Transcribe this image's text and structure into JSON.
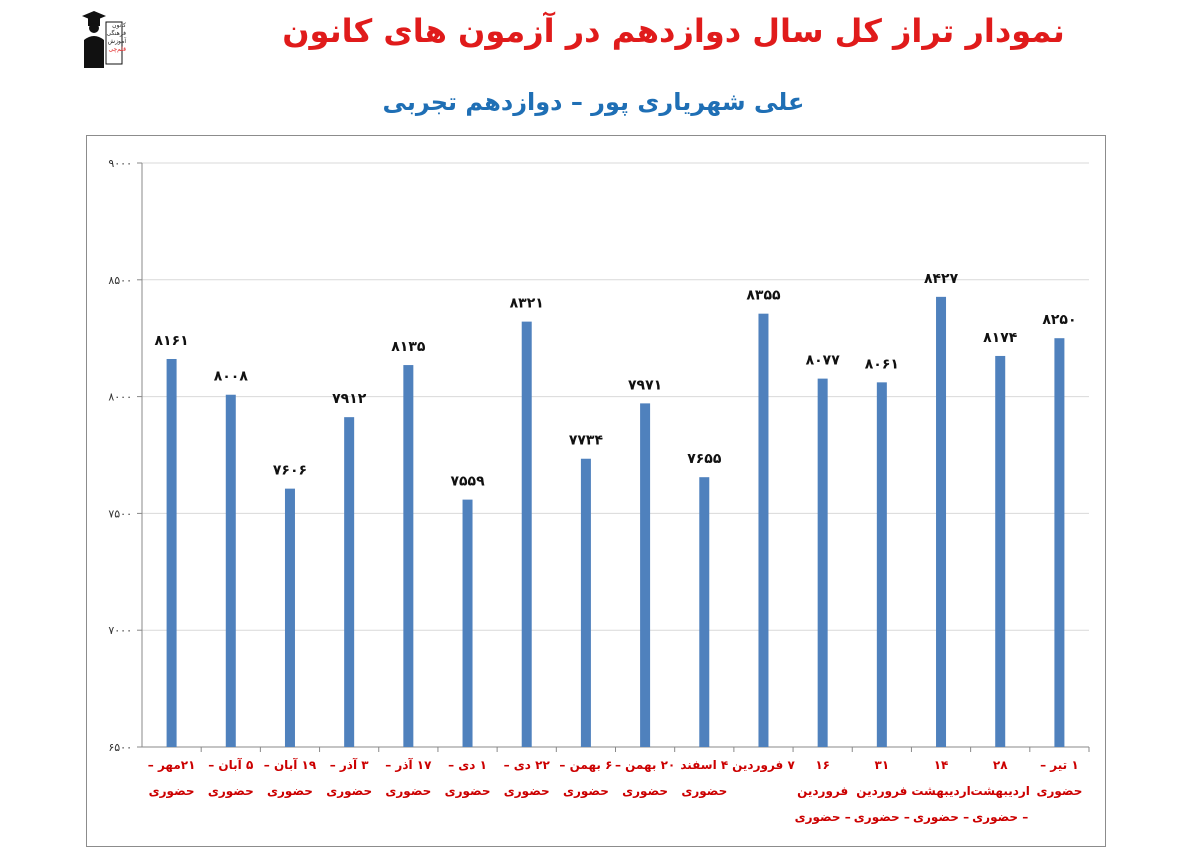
{
  "header": {
    "title": "نمودار تراز کل سال دوازدهم در آزمون های کانون",
    "subtitle": "علی شهریاری پور – دوازدهم تجربی",
    "logo_lines": [
      "کانون",
      "فرهنگی",
      "آموزش",
      "قلم‌چی"
    ]
  },
  "colors": {
    "title": "#e01b1b",
    "subtitle": "#1f6fb5",
    "bar": "#4f81bd",
    "category_label": "#cc0000",
    "grid": "#d9d9d9"
  },
  "chart_data": {
    "type": "bar",
    "title": "",
    "xlabel": "",
    "ylabel": "",
    "ylim": [
      6500,
      9000
    ],
    "yticks": [
      6500,
      7000,
      7500,
      8000,
      8500,
      9000
    ],
    "ytick_labels": [
      "۶۵۰۰",
      "۷۰۰۰",
      "۷۵۰۰",
      "۸۰۰۰",
      "۸۵۰۰",
      "۹۰۰۰"
    ],
    "grid": true,
    "categories": [
      [
        "۲۱مهر –",
        "حضوری"
      ],
      [
        "۵ آبان –",
        "حضوری"
      ],
      [
        "۱۹ آبان –",
        "حضوری"
      ],
      [
        "۳ آذر –",
        "حضوری"
      ],
      [
        "۱۷ آذر –",
        "حضوری"
      ],
      [
        "۱ دی –",
        "حضوری"
      ],
      [
        "۲۲ دی –",
        "حضوری"
      ],
      [
        "۶ بهمن –",
        "حضوری"
      ],
      [
        "۲۰ بهمن –",
        "حضوری"
      ],
      [
        "۴ اسفند",
        "حضوری"
      ],
      [
        "۷ فروردین",
        ""
      ],
      [
        "۱۶",
        "فروردین",
        "– حضوری"
      ],
      [
        "۳۱",
        "فروردین",
        "– حضوری"
      ],
      [
        "۱۴",
        "اردیبهشت",
        "– حضوری"
      ],
      [
        "۲۸",
        "اردیبهشت",
        "– حضوری"
      ],
      [
        "۱ تیر –",
        "حضوری"
      ]
    ],
    "values": [
      8161,
      8008,
      7606,
      7912,
      8135,
      7559,
      8321,
      7734,
      7971,
      7655,
      8355,
      8077,
      8061,
      8427,
      8174,
      8250
    ],
    "value_labels": [
      "۸۱۶۱",
      "۸۰۰۸",
      "۷۶۰۶",
      "۷۹۱۲",
      "۸۱۳۵",
      "۷۵۵۹",
      "۸۳۲۱",
      "۷۷۳۴",
      "۷۹۷۱",
      "۷۶۵۵",
      "۸۳۵۵",
      "۸۰۷۷",
      "۸۰۶۱",
      "۸۴۲۷",
      "۸۱۷۴",
      "۸۲۵۰"
    ]
  }
}
